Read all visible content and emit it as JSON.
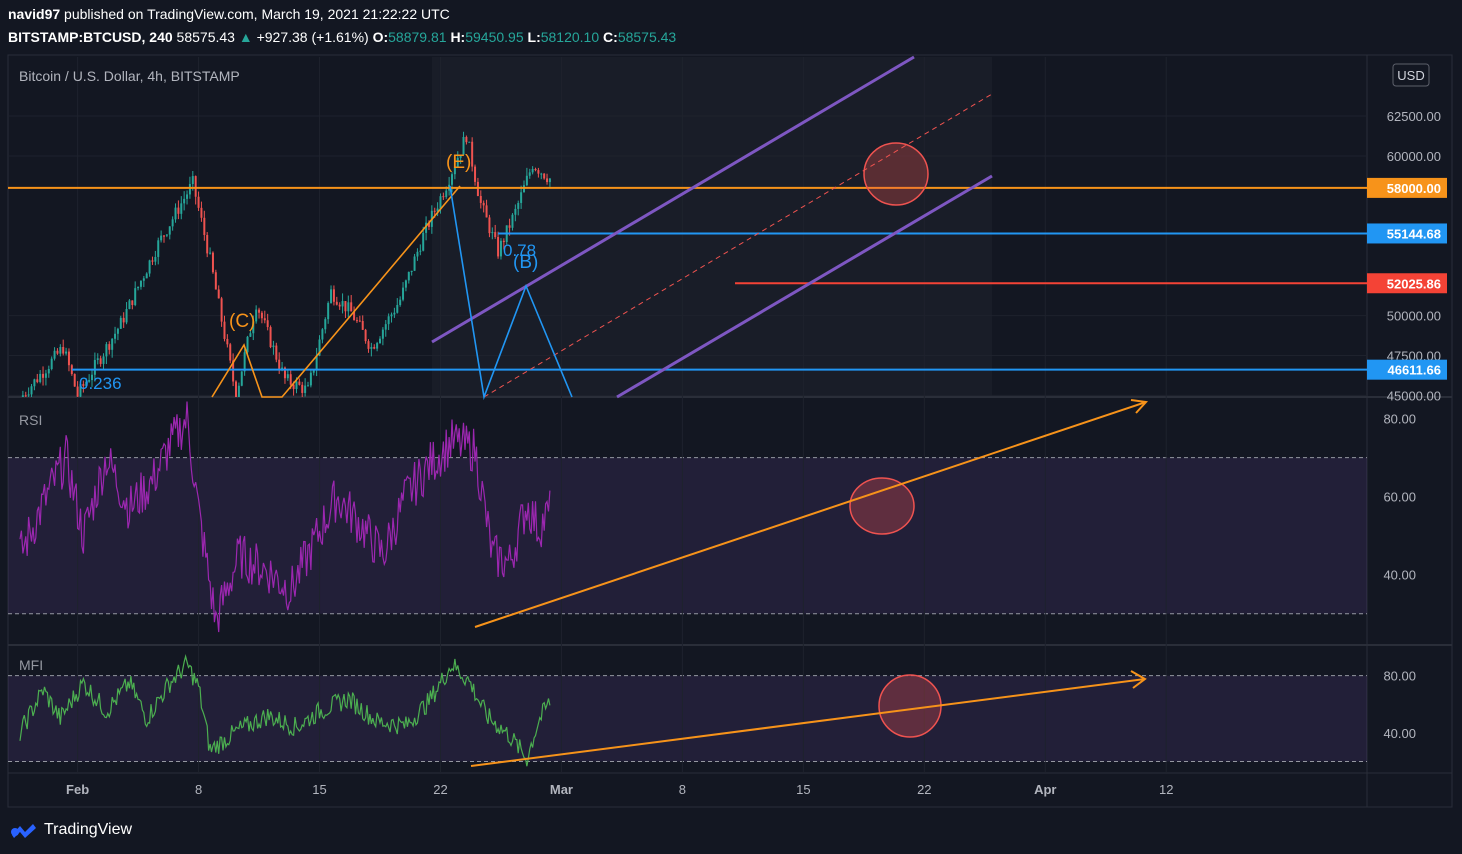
{
  "header": {
    "publisher": "navid97",
    "published_text": "published on TradingView.com, March 19, 2021 21:22:22 UTC",
    "symbol": "BITSTAMP:BTCUSD, 240",
    "last": "58575.43",
    "change": "+927.38 (+1.61%)",
    "o_label": "O:",
    "o_val": "58879.81",
    "h_label": "H:",
    "h_val": "59450.95",
    "l_label": "L:",
    "l_val": "58120.10",
    "c_label": "C:",
    "c_val": "58575.43"
  },
  "brand": {
    "name": "TradingView"
  },
  "colors": {
    "bg": "#131722",
    "grid": "#1e222d",
    "up": "#26a69a",
    "down": "#ef5350",
    "orange": "#f7931a",
    "fib_blue": "#2962ff",
    "purple": "#7e57c2",
    "rsi": "#9c27b0",
    "mfi": "#4caf50"
  },
  "chart_data": [
    {
      "type": "candlestick",
      "title": "Bitcoin / U.S. Dollar, 4h, BITSTAMP",
      "currency": "USD",
      "y_ticks": [
        "62500.00",
        "60000.00",
        "50000.00",
        "47500.00",
        "45000.00"
      ],
      "ylim": [
        44900,
        66200
      ],
      "x_ticks": [
        "Feb",
        "8",
        "15",
        "22",
        "Mar",
        "8",
        "15",
        "22",
        "Apr",
        "12"
      ],
      "x_label_index": [
        20,
        62,
        104,
        146,
        188,
        230,
        272,
        314,
        356,
        398
      ],
      "x_range_days": [
        "Jan 27",
        "Apr 15"
      ],
      "horizontal_levels": [
        {
          "label": "58000.00",
          "value": 58000,
          "color": "#f7931a"
        },
        {
          "label": "55144.68",
          "value": 55144.68,
          "color": "#2196f3"
        },
        {
          "label": "52025.86",
          "value": 52025.86,
          "color": "#f44336"
        },
        {
          "label": "46611.66",
          "value": 46611.66,
          "color": "#2196f3"
        }
      ],
      "fib_labels": [
        "0.236",
        "0.78"
      ],
      "wave_labels": [
        "(C)",
        "(E)",
        "(B)"
      ],
      "anchors": [
        {
          "t": 0,
          "p": 44800
        },
        {
          "t": 15,
          "p": 48000
        },
        {
          "t": 20,
          "p": 45000
        },
        {
          "t": 35,
          "p": 49500
        },
        {
          "t": 48,
          "p": 54500
        },
        {
          "t": 60,
          "p": 58300
        },
        {
          "t": 66,
          "p": 53500
        },
        {
          "t": 75,
          "p": 45000
        },
        {
          "t": 82,
          "p": 50800
        },
        {
          "t": 92,
          "p": 46000
        },
        {
          "t": 100,
          "p": 45300
        },
        {
          "t": 108,
          "p": 51500
        },
        {
          "t": 115,
          "p": 50200
        },
        {
          "t": 122,
          "p": 48000
        },
        {
          "t": 132,
          "p": 51000
        },
        {
          "t": 140,
          "p": 55000
        },
        {
          "t": 148,
          "p": 58200
        },
        {
          "t": 155,
          "p": 61300
        },
        {
          "t": 160,
          "p": 57000
        },
        {
          "t": 166,
          "p": 54000
        },
        {
          "t": 172,
          "p": 56500
        },
        {
          "t": 178,
          "p": 59500
        },
        {
          "t": 184,
          "p": 58575
        }
      ]
    },
    {
      "type": "line",
      "name": "RSI",
      "y_ticks": [
        "80.00",
        "60.00",
        "40.00"
      ],
      "bands": [
        70,
        30
      ],
      "ylim": [
        22,
        85
      ],
      "anchors": [
        {
          "t": 0,
          "p": 45
        },
        {
          "t": 8,
          "p": 58
        },
        {
          "t": 16,
          "p": 70
        },
        {
          "t": 22,
          "p": 50
        },
        {
          "t": 30,
          "p": 70
        },
        {
          "t": 38,
          "p": 57
        },
        {
          "t": 46,
          "p": 64
        },
        {
          "t": 52,
          "p": 73
        },
        {
          "t": 58,
          "p": 80
        },
        {
          "t": 62,
          "p": 56
        },
        {
          "t": 68,
          "p": 28
        },
        {
          "t": 76,
          "p": 45
        },
        {
          "t": 86,
          "p": 41
        },
        {
          "t": 94,
          "p": 36
        },
        {
          "t": 102,
          "p": 48
        },
        {
          "t": 110,
          "p": 60
        },
        {
          "t": 118,
          "p": 53
        },
        {
          "t": 126,
          "p": 45
        },
        {
          "t": 134,
          "p": 60
        },
        {
          "t": 142,
          "p": 68
        },
        {
          "t": 150,
          "p": 74
        },
        {
          "t": 158,
          "p": 72
        },
        {
          "t": 164,
          "p": 45
        },
        {
          "t": 170,
          "p": 43
        },
        {
          "t": 176,
          "p": 58
        },
        {
          "t": 180,
          "p": 52
        },
        {
          "t": 184,
          "p": 56
        }
      ]
    },
    {
      "type": "line",
      "name": "MFI",
      "y_ticks": [
        "80.00",
        "40.00"
      ],
      "bands": [
        80,
        20
      ],
      "ylim": [
        12,
        100
      ],
      "anchors": [
        {
          "t": 0,
          "p": 40
        },
        {
          "t": 8,
          "p": 70
        },
        {
          "t": 14,
          "p": 50
        },
        {
          "t": 22,
          "p": 75
        },
        {
          "t": 30,
          "p": 55
        },
        {
          "t": 38,
          "p": 75
        },
        {
          "t": 44,
          "p": 50
        },
        {
          "t": 52,
          "p": 75
        },
        {
          "t": 58,
          "p": 88
        },
        {
          "t": 62,
          "p": 72
        },
        {
          "t": 66,
          "p": 28
        },
        {
          "t": 76,
          "p": 42
        },
        {
          "t": 86,
          "p": 52
        },
        {
          "t": 96,
          "p": 44
        },
        {
          "t": 104,
          "p": 55
        },
        {
          "t": 114,
          "p": 64
        },
        {
          "t": 124,
          "p": 48
        },
        {
          "t": 134,
          "p": 45
        },
        {
          "t": 142,
          "p": 62
        },
        {
          "t": 150,
          "p": 88
        },
        {
          "t": 156,
          "p": 76
        },
        {
          "t": 162,
          "p": 52
        },
        {
          "t": 170,
          "p": 38
        },
        {
          "t": 176,
          "p": 22
        },
        {
          "t": 180,
          "p": 48
        },
        {
          "t": 184,
          "p": 62
        }
      ]
    }
  ]
}
